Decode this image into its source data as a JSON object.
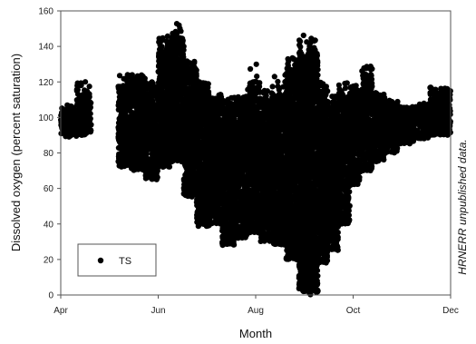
{
  "chart_data": {
    "type": "scatter",
    "xlabel": "Month",
    "ylabel": "Dissolved oxygen (percent saturation)",
    "side_note": "HRNERR unpublished data.",
    "xlim": [
      "Apr 1",
      "Dec 1"
    ],
    "ylim": [
      0,
      160
    ],
    "y_ticks": [
      0,
      20,
      40,
      60,
      80,
      100,
      120,
      140,
      160
    ],
    "x_ticks": [
      {
        "label": "Apr",
        "date": "Apr 1"
      },
      {
        "label": "Jun",
        "date": "Jun 1"
      },
      {
        "label": "Aug",
        "date": "Aug 1"
      },
      {
        "label": "Oct",
        "date": "Oct 1"
      },
      {
        "label": "Dec",
        "date": "Dec 1"
      }
    ],
    "legend": {
      "position": "bottom-left",
      "entries": [
        "TS"
      ]
    },
    "grid": false,
    "marker_color": "#000000",
    "series": [
      {
        "name": "TS",
        "bands": [
          {
            "from": "Apr 1",
            "to": "Apr 11",
            "low": 89,
            "high": 104,
            "max_outlier": 107
          },
          {
            "from": "Apr 11",
            "to": "Apr 20",
            "low": 90,
            "high": 115,
            "max_outlier": 121
          },
          {
            "from": "May 7",
            "to": "May 15",
            "low": 72,
            "high": 118,
            "max_outlier": 124
          },
          {
            "from": "May 15",
            "to": "May 24",
            "low": 70,
            "high": 122,
            "max_outlier": 124
          },
          {
            "from": "May 24",
            "to": "Jun 1",
            "low": 65,
            "high": 118,
            "max_outlier": 120
          },
          {
            "from": "Jun 1",
            "to": "Jun 9",
            "low": 72,
            "high": 140,
            "max_outlier": 147
          },
          {
            "from": "Jun 9",
            "to": "Jun 17",
            "low": 75,
            "high": 145,
            "max_outlier": 153
          },
          {
            "from": "Jun 17",
            "to": "Jun 25",
            "low": 55,
            "high": 128,
            "max_outlier": 132
          },
          {
            "from": "Jun 25",
            "to": "Jul 3",
            "low": 38,
            "high": 118,
            "max_outlier": 120
          },
          {
            "from": "Jul 3",
            "to": "Jul 11",
            "low": 40,
            "high": 110,
            "max_outlier": 113
          },
          {
            "from": "Jul 11",
            "to": "Jul 19",
            "low": 28,
            "high": 108,
            "max_outlier": 112
          },
          {
            "from": "Jul 19",
            "to": "Jul 27",
            "low": 32,
            "high": 110,
            "max_outlier": 112
          },
          {
            "from": "Jul 27",
            "to": "Aug 4",
            "low": 35,
            "high": 118,
            "max_outlier": 130
          },
          {
            "from": "Aug 4",
            "to": "Aug 12",
            "low": 30,
            "high": 110,
            "max_outlier": 120
          },
          {
            "from": "Aug 12",
            "to": "Aug 20",
            "low": 28,
            "high": 112,
            "max_outlier": 125
          },
          {
            "from": "Aug 20",
            "to": "Aug 28",
            "low": 20,
            "high": 128,
            "max_outlier": 135
          },
          {
            "from": "Aug 28",
            "to": "Sep 3",
            "low": 2,
            "high": 135,
            "max_outlier": 148
          },
          {
            "from": "Sep 3",
            "to": "Sep 9",
            "low": 0,
            "high": 138,
            "max_outlier": 145
          },
          {
            "from": "Sep 9",
            "to": "Sep 15",
            "low": 18,
            "high": 115,
            "max_outlier": 120
          },
          {
            "from": "Sep 15",
            "to": "Sep 22",
            "low": 25,
            "high": 108,
            "max_outlier": 112
          },
          {
            "from": "Sep 22",
            "to": "Sep 29",
            "low": 40,
            "high": 112,
            "max_outlier": 120
          },
          {
            "from": "Sep 29",
            "to": "Oct 6",
            "low": 62,
            "high": 115,
            "max_outlier": 118
          },
          {
            "from": "Oct 6",
            "to": "Oct 13",
            "low": 70,
            "high": 124,
            "max_outlier": 129
          },
          {
            "from": "Oct 13",
            "to": "Oct 21",
            "low": 75,
            "high": 112,
            "max_outlier": 114
          },
          {
            "from": "Oct 21",
            "to": "Oct 29",
            "low": 80,
            "high": 108,
            "max_outlier": 110
          },
          {
            "from": "Oct 29",
            "to": "Nov 8",
            "low": 85,
            "high": 104,
            "max_outlier": 106
          },
          {
            "from": "Nov 8",
            "to": "Nov 18",
            "low": 88,
            "high": 106,
            "max_outlier": 108
          },
          {
            "from": "Nov 18",
            "to": "Dec 1",
            "low": 90,
            "high": 114,
            "max_outlier": 117
          }
        ]
      }
    ]
  }
}
